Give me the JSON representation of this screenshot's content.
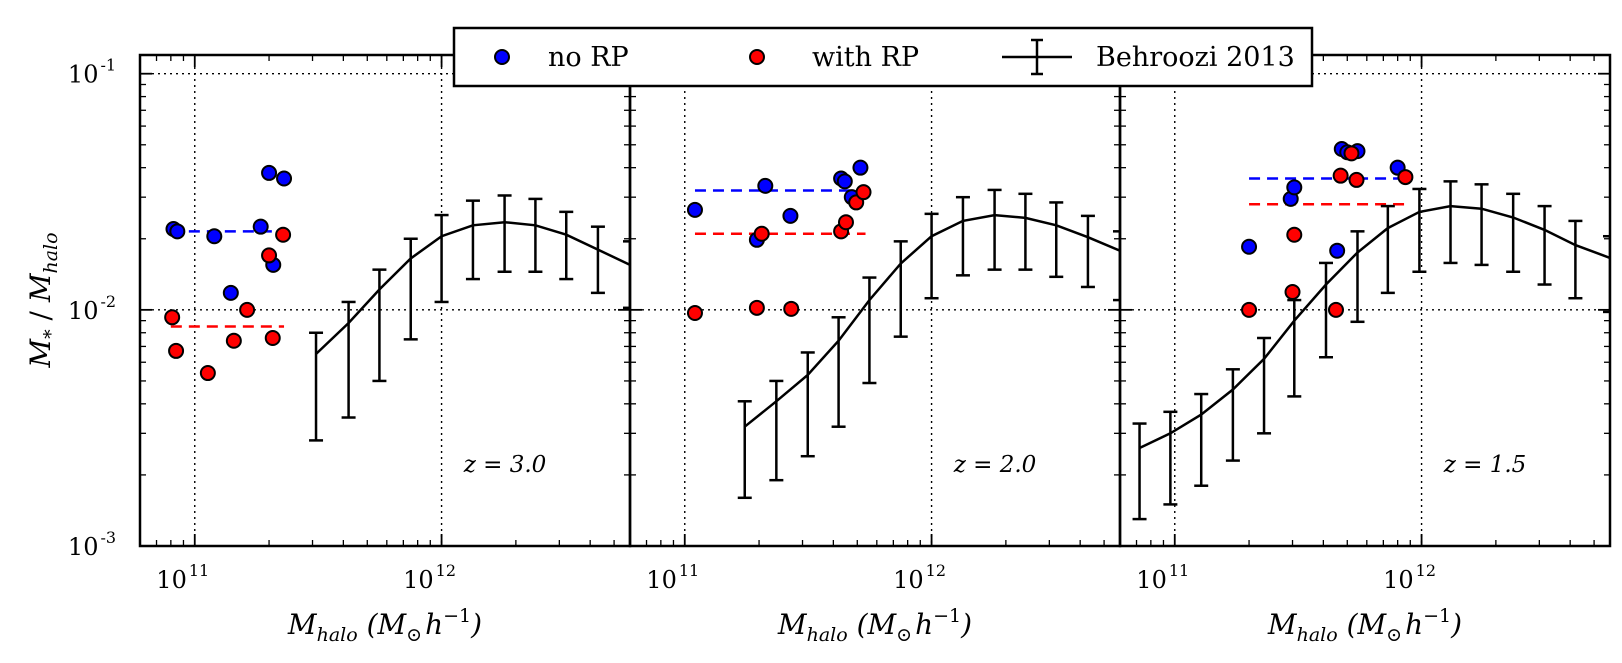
{
  "chart_data": {
    "type": "scatter",
    "figure_layout": "three panels sharing y axis",
    "y_scale": "log",
    "x_scale": "log",
    "ylim": [
      0.001,
      0.12
    ],
    "y_ticks": [
      {
        "value": 0.1,
        "base": "10",
        "exp": "-1"
      },
      {
        "value": 0.01,
        "base": "10",
        "exp": "-2"
      },
      {
        "value": 0.001,
        "base": "10",
        "exp": "-3"
      }
    ],
    "x_ticks": [
      {
        "value": 100000000000.0,
        "base": "10",
        "exp": "11"
      },
      {
        "value": 1000000000000.0,
        "base": "10",
        "exp": "12"
      }
    ],
    "ylabel": {
      "main_a": "M",
      "sub_a": "*",
      "mid": " / ",
      "main_b": "M",
      "sub_b": "halo"
    },
    "xlabel": {
      "main": "M",
      "sub": "halo",
      "rest_open": " (M",
      "sun": "⊙",
      "h": "h",
      "exp": "−1",
      "rest_close": ")"
    },
    "legend": {
      "placement": "top-center",
      "entries": [
        {
          "label": "no RP",
          "color": "#0000ff",
          "marker": "circle"
        },
        {
          "label": "with RP",
          "color": "#ff0000",
          "marker": "circle"
        },
        {
          "label": "Behroozi 2013",
          "color": "#000000",
          "marker": "line-errorbar"
        }
      ]
    },
    "panels": [
      {
        "redshift_label": "z = 3.0",
        "xlim": [
          60000000000.0,
          5800000000000.0
        ],
        "no_rp": [
          [
            82000000000.0,
            0.022
          ],
          [
            85000000000.0,
            0.0215
          ],
          [
            120000000000.0,
            0.0205
          ],
          [
            140000000000.0,
            0.0118
          ],
          [
            185000000000.0,
            0.0225
          ],
          [
            200000000000.0,
            0.038
          ],
          [
            208000000000.0,
            0.0155
          ],
          [
            230000000000.0,
            0.036
          ]
        ],
        "with_rp": [
          [
            81000000000.0,
            0.0093
          ],
          [
            84000000000.0,
            0.0067
          ],
          [
            113000000000.0,
            0.0054
          ],
          [
            144000000000.0,
            0.0074
          ],
          [
            163000000000.0,
            0.01
          ],
          [
            200000000000.0,
            0.017
          ],
          [
            207000000000.0,
            0.0076
          ],
          [
            228000000000.0,
            0.0208
          ]
        ],
        "no_rp_median": {
          "value": 0.0215,
          "x_range": [
            80000000000.0,
            230000000000.0
          ]
        },
        "with_rp_median": {
          "value": 0.0085,
          "x_range": [
            80000000000.0,
            230000000000.0
          ]
        },
        "behroozi": [
          {
            "x": 310000000000.0,
            "y": 0.0065,
            "lo": 0.0028,
            "hi": 0.008
          },
          {
            "x": 420000000000.0,
            "y": 0.0088,
            "lo": 0.0035,
            "hi": 0.0108
          },
          {
            "x": 560000000000.0,
            "y": 0.0122,
            "lo": 0.005,
            "hi": 0.0148
          },
          {
            "x": 750000000000.0,
            "y": 0.0165,
            "lo": 0.0075,
            "hi": 0.02
          },
          {
            "x": 1000000000000.0,
            "y": 0.0205,
            "lo": 0.0108,
            "hi": 0.0252
          },
          {
            "x": 1340000000000.0,
            "y": 0.0228,
            "lo": 0.0135,
            "hi": 0.029
          },
          {
            "x": 1800000000000.0,
            "y": 0.0235,
            "lo": 0.0145,
            "hi": 0.0305
          },
          {
            "x": 2400000000000.0,
            "y": 0.0228,
            "lo": 0.0145,
            "hi": 0.0295
          },
          {
            "x": 3200000000000.0,
            "y": 0.0208,
            "lo": 0.0135,
            "hi": 0.026
          },
          {
            "x": 4300000000000.0,
            "y": 0.018,
            "lo": 0.0118,
            "hi": 0.0225
          },
          {
            "x": 5800000000000.0,
            "y": 0.0155,
            "lo": 0.0102,
            "hi": 0.0195
          }
        ]
      },
      {
        "redshift_label": "z = 2.0",
        "xlim": [
          60000000000.0,
          5800000000000.0
        ],
        "no_rp": [
          [
            110000000000.0,
            0.0265
          ],
          [
            196000000000.0,
            0.0198
          ],
          [
            212000000000.0,
            0.0335
          ],
          [
            268000000000.0,
            0.025
          ],
          [
            430000000000.0,
            0.036
          ],
          [
            445000000000.0,
            0.035
          ],
          [
            475000000000.0,
            0.03
          ],
          [
            515000000000.0,
            0.04
          ]
        ],
        "with_rp": [
          [
            110000000000.0,
            0.0097
          ],
          [
            196000000000.0,
            0.0102
          ],
          [
            205000000000.0,
            0.021
          ],
          [
            270000000000.0,
            0.0101
          ],
          [
            430000000000.0,
            0.0215
          ],
          [
            450000000000.0,
            0.0235
          ],
          [
            495000000000.0,
            0.0285
          ],
          [
            530000000000.0,
            0.0315
          ]
        ],
        "no_rp_median": {
          "value": 0.032,
          "x_range": [
            110000000000.0,
            500000000000.0
          ]
        },
        "with_rp_median": {
          "value": 0.021,
          "x_range": [
            110000000000.0,
            540000000000.0
          ]
        },
        "behroozi": [
          {
            "x": 175000000000.0,
            "y": 0.0032,
            "lo": 0.0016,
            "hi": 0.0041
          },
          {
            "x": 235000000000.0,
            "y": 0.0041,
            "lo": 0.0019,
            "hi": 0.005
          },
          {
            "x": 315000000000.0,
            "y": 0.0053,
            "lo": 0.0024,
            "hi": 0.0066
          },
          {
            "x": 420000000000.0,
            "y": 0.0074,
            "lo": 0.0032,
            "hi": 0.0093
          },
          {
            "x": 560000000000.0,
            "y": 0.011,
            "lo": 0.0049,
            "hi": 0.0137
          },
          {
            "x": 750000000000.0,
            "y": 0.0157,
            "lo": 0.0077,
            "hi": 0.0195
          },
          {
            "x": 1000000000000.0,
            "y": 0.0205,
            "lo": 0.0112,
            "hi": 0.0255
          },
          {
            "x": 1340000000000.0,
            "y": 0.0238,
            "lo": 0.014,
            "hi": 0.03
          },
          {
            "x": 1800000000000.0,
            "y": 0.0252,
            "lo": 0.0148,
            "hi": 0.0322
          },
          {
            "x": 2400000000000.0,
            "y": 0.0245,
            "lo": 0.0148,
            "hi": 0.031
          },
          {
            "x": 3200000000000.0,
            "y": 0.0228,
            "lo": 0.0138,
            "hi": 0.0285
          },
          {
            "x": 4300000000000.0,
            "y": 0.0203,
            "lo": 0.0125,
            "hi": 0.025
          },
          {
            "x": 5800000000000.0,
            "y": 0.0178,
            "lo": 0.011,
            "hi": 0.0215
          }
        ]
      },
      {
        "redshift_label": "z = 1.5",
        "xlim": [
          60000000000.0,
          5800000000000.0
        ],
        "no_rp": [
          [
            200000000000.0,
            0.0185
          ],
          [
            295000000000.0,
            0.0295
          ],
          [
            305000000000.0,
            0.033
          ],
          [
            455000000000.0,
            0.0178
          ],
          [
            475000000000.0,
            0.048
          ],
          [
            500000000000.0,
            0.0465
          ],
          [
            550000000000.0,
            0.047
          ],
          [
            800000000000.0,
            0.04
          ]
        ],
        "with_rp": [
          [
            200000000000.0,
            0.01
          ],
          [
            300000000000.0,
            0.0119
          ],
          [
            305000000000.0,
            0.0208
          ],
          [
            450000000000.0,
            0.01
          ],
          [
            470000000000.0,
            0.037
          ],
          [
            520000000000.0,
            0.046
          ],
          [
            545000000000.0,
            0.0355
          ],
          [
            860000000000.0,
            0.0365
          ]
        ],
        "no_rp_median": {
          "value": 0.036,
          "x_range": [
            200000000000.0,
            850000000000.0
          ]
        },
        "with_rp_median": {
          "value": 0.028,
          "x_range": [
            200000000000.0,
            850000000000.0
          ]
        },
        "behroozi": [
          {
            "x": 72000000000.0,
            "y": 0.0026,
            "lo": 0.0013,
            "hi": 0.0033
          },
          {
            "x": 96000000000.0,
            "y": 0.003,
            "lo": 0.0015,
            "hi": 0.0037
          },
          {
            "x": 128000000000.0,
            "y": 0.0036,
            "lo": 0.0018,
            "hi": 0.0044
          },
          {
            "x": 172000000000.0,
            "y": 0.0046,
            "lo": 0.0023,
            "hi": 0.0056
          },
          {
            "x": 230000000000.0,
            "y": 0.0062,
            "lo": 0.003,
            "hi": 0.0076
          },
          {
            "x": 305000000000.0,
            "y": 0.009,
            "lo": 0.0043,
            "hi": 0.011
          },
          {
            "x": 410000000000.0,
            "y": 0.0128,
            "lo": 0.0063,
            "hi": 0.0158
          },
          {
            "x": 550000000000.0,
            "y": 0.0175,
            "lo": 0.0089,
            "hi": 0.0215
          },
          {
            "x": 730000000000.0,
            "y": 0.0222,
            "lo": 0.0118,
            "hi": 0.0275
          },
          {
            "x": 980000000000.0,
            "y": 0.026,
            "lo": 0.0145,
            "hi": 0.0325
          },
          {
            "x": 1310000000000.0,
            "y": 0.0275,
            "lo": 0.0158,
            "hi": 0.035
          },
          {
            "x": 1750000000000.0,
            "y": 0.0268,
            "lo": 0.0155,
            "hi": 0.034
          },
          {
            "x": 2350000000000.0,
            "y": 0.0246,
            "lo": 0.0145,
            "hi": 0.031
          },
          {
            "x": 3150000000000.0,
            "y": 0.0218,
            "lo": 0.0128,
            "hi": 0.0275
          },
          {
            "x": 4200000000000.0,
            "y": 0.0188,
            "lo": 0.0112,
            "hi": 0.0238
          },
          {
            "x": 5800000000000.0,
            "y": 0.0166,
            "lo": 0.0098,
            "hi": 0.0205
          }
        ]
      }
    ]
  }
}
